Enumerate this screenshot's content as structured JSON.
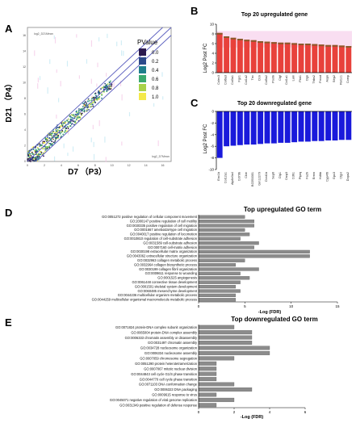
{
  "panels": {
    "A": "A",
    "B": "B",
    "C": "C",
    "D": "D",
    "E": "E"
  },
  "chart_data": [
    {
      "id": "A",
      "type": "scatter",
      "title": "",
      "xlabel": "D7 （P3）",
      "ylabel": "D21 （P4）",
      "legend_title": "PValue",
      "legend_ticks": [
        "0.0",
        "0.2",
        "0.4",
        "0.6",
        "0.8",
        "1.0"
      ],
      "legend_colors": [
        "#2b1a4e",
        "#2d4a8a",
        "#1f7f8c",
        "#3aaa6f",
        "#a8d24a",
        "#f4e94a"
      ],
      "x_ticks": [
        "0",
        "2",
        "4",
        "6",
        "8",
        "10",
        "12",
        "14",
        "16"
      ],
      "y_ticks": [
        "0",
        "2",
        "4",
        "6",
        "8",
        "10",
        "12",
        "14",
        "16"
      ],
      "xlim": [
        0,
        17
      ],
      "ylim": [
        0,
        17
      ],
      "corner_label_top": "log2_D21Mean",
      "corner_label_bottom": "log2_D7Mean"
    },
    {
      "id": "B",
      "type": "bar",
      "title": "Top 20 upregulated gene",
      "ylabel": "Log2 Post FC",
      "ylim": [
        0,
        10
      ],
      "y_ticks": [
        "0",
        "2",
        "4",
        "6",
        "8",
        "10"
      ],
      "categories": [
        "Colec3",
        "Col6a3",
        "Col3a1",
        "Fgs1",
        "Col1a2",
        "Tnc",
        "Dcn",
        "Col5a2",
        "Postn",
        "Ctgf",
        "Col1a1",
        "Lum",
        "Fbn1",
        "Ogn",
        "Thbs2",
        "Fmod",
        "Aspn",
        "Sfrp2",
        "Rel1c1",
        "Comp"
      ],
      "values": [
        8.2,
        7.5,
        7.2,
        7.0,
        6.8,
        6.7,
        6.5,
        6.4,
        6.3,
        6.2,
        6.2,
        6.1,
        6.0,
        6.0,
        5.9,
        5.8,
        5.7,
        5.7,
        5.6,
        5.5
      ],
      "bar_color": "#e8413b"
    },
    {
      "id": "C",
      "type": "bar",
      "title": "Top 20 downregulated gene",
      "ylabel": "Log2 Post FC",
      "ylim": [
        -10,
        0
      ],
      "y_ticks": [
        "0",
        "-2",
        "-4",
        "-6",
        "-8",
        "-10"
      ],
      "categories": [
        "Enc1b",
        "Col12a1",
        "Atp6v0a4",
        "Cd79b",
        "Ckm",
        "BC053301",
        "Gm12279",
        "Dcst1b",
        "Sep6",
        "Dlp1",
        "Csrp3",
        "Cdh1",
        "Ptprq",
        "Fa2h",
        "Ermn",
        "Hdhb",
        "Cyp4f6",
        "Gpx3",
        "Ctgvl",
        "Dopa2"
      ],
      "values": [
        -8.0,
        -6.0,
        -5.9,
        -5.8,
        -5.7,
        -5.7,
        -5.6,
        -5.5,
        -5.5,
        -5.4,
        -5.4,
        -5.3,
        -5.2,
        -5.2,
        -5.1,
        -5.1,
        -5.0,
        -5.0,
        -4.9,
        -4.9
      ],
      "bar_color": "#1a1adb"
    },
    {
      "id": "D",
      "type": "bar",
      "orientation": "horizontal",
      "title": "Top upregulated GO term",
      "xlabel": "-Log (FDR)",
      "xlim": [
        0,
        15
      ],
      "x_ticks": [
        "0",
        "5",
        "10",
        "15"
      ],
      "categories": [
        "GO:0051272 positive regulation of cellular component movement",
        "GO:2000147 positive regulation of cell motility",
        "GO:0030335 positive regulation of cell migration",
        "GO:0001667 ameboidal-type cell migration",
        "GO:0040017 positive regulation of locomotion",
        "GO:0010810 regulation of cell-substrate adhesion",
        "GO:0031589 cell-substrate adhesion",
        "GO:0007160 cell-matrix adhesion",
        "GO:0030198 extracellular matrix organization",
        "GO:0043062 extracellular structure organization",
        "GO:0032963 collagen metabolic process",
        "GO:0032964 collagen biosynthetic process",
        "GO:0030199 collagen fibril organization",
        "GO:0009611 response to wounding",
        "GO:0001525 angiogenesis",
        "GO:0061448 connective tissue development",
        "GO:0001501 skeletal system development",
        "GO:0060485 mesenchyme development",
        "GO:0044236 multicellular organism metabolic process",
        "GO:0044259 multicellular organismal macromolecule metabolic process"
      ],
      "values": [
        5.0,
        6.0,
        6.0,
        5.0,
        5.5,
        4.5,
        6.5,
        6.0,
        12.0,
        12.0,
        5.0,
        4.0,
        6.5,
        4.5,
        5.5,
        4.5,
        4.0,
        4.5,
        4.0,
        4.0
      ],
      "bar_color": "#8c8c8c"
    },
    {
      "id": "E",
      "type": "bar",
      "orientation": "horizontal",
      "title": "Top downregulated GO term",
      "xlabel": "-Log (FDR)",
      "xlim": [
        0,
        6
      ],
      "x_ticks": [
        "0",
        "2",
        "4",
        "6"
      ],
      "categories": [
        "GO:0071824 protein-DNA complex subunit organization",
        "GO:0065004 protein-DNA complex assembly",
        "GO:0006333 chromatin assembly or disassembly",
        "GO:0031497 chromatin assembly",
        "GO:0034728 nucleosome organization",
        "GO:0006334 nucleosome assembly",
        "GO:0007059 chromosome segregation",
        "GO:0051290 protein heterotetramerization",
        "GO:0007067 mitotic nuclear division",
        "GO:0044843 cell cycle G1/S phase transition",
        "GO:0044770 cell cycle phase transition",
        "GO:0071103 DNA conformation change",
        "GO:0006323 DNA packaging",
        "GO:0009615 response to virus",
        "GO:0045071 negative regulation of viral genome replication",
        "GO:0031349 positive regulation of defense response"
      ],
      "values": [
        2.0,
        3.0,
        3.0,
        3.0,
        4.0,
        4.0,
        2.0,
        1.0,
        1.0,
        1.0,
        1.0,
        2.0,
        3.0,
        1.0,
        2.0,
        1.0
      ],
      "bar_color": "#8c8c8c"
    }
  ]
}
